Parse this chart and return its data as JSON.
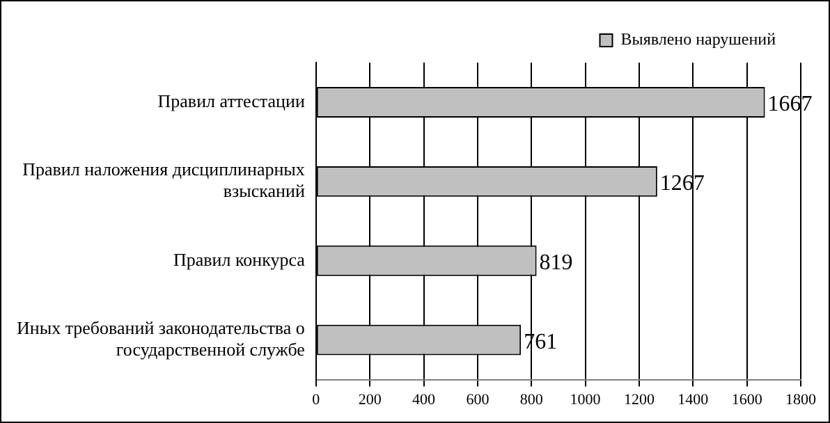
{
  "chart_data": {
    "type": "bar",
    "orientation": "horizontal",
    "categories": [
      "Правил аттестации",
      "Правил наложения дисциплинарных взысканий",
      "Правил конкурса",
      "Иных требований законодательства о государственной службе"
    ],
    "series": [
      {
        "name": "Выявлено нарушений",
        "color": "#c0c0c0",
        "values": [
          1667,
          1267,
          819,
          761
        ]
      }
    ],
    "xlim": [
      0,
      1800
    ],
    "xticks": [
      0,
      200,
      400,
      600,
      800,
      1000,
      1200,
      1400,
      1600,
      1800
    ],
    "grid": "x",
    "legend": "top right",
    "data_labels": true
  }
}
